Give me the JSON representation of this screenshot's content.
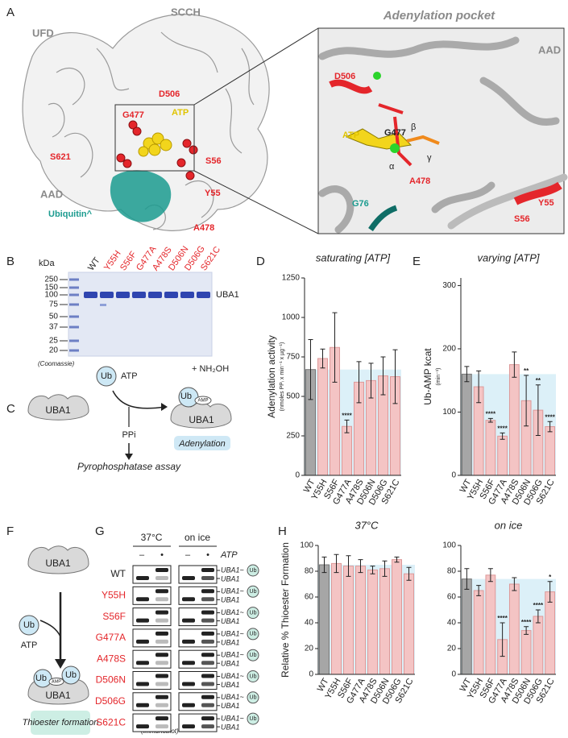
{
  "panel_labels": [
    "A",
    "B",
    "C",
    "D",
    "E",
    "F",
    "G",
    "H"
  ],
  "panel_a": {
    "labels": {
      "ufd": "UFD",
      "scch": "SCCH",
      "aad": "AAD",
      "g477": "G477",
      "d506": "D506",
      "atp": "ATP",
      "s621": "S621",
      "s56": "S56",
      "y55": "Y55",
      "a478": "A478",
      "ubiquitin": "Ubiquitin^"
    },
    "inset": {
      "title": "Adenylation pocket",
      "labels": {
        "aad": "AAD",
        "d506": "D506",
        "atp": "ATP",
        "g477": "G477",
        "beta": "β",
        "gamma": "γ",
        "alpha": "α",
        "a478": "A478",
        "y55": "Y55",
        "s56": "S56",
        "g76": "G76"
      }
    }
  },
  "panel_b": {
    "kda": "kDa",
    "markers": [
      250,
      150,
      100,
      75,
      50,
      37,
      25,
      20
    ],
    "lanes": [
      "WT",
      "Y55H",
      "S56F",
      "G477A",
      "A478S",
      "D506N",
      "D506G",
      "S621C"
    ],
    "band_label": "UBA1",
    "stain": "(Coomassie)"
  },
  "panel_c": {
    "uba1": "UBA1",
    "ub": "Ub",
    "atp": "ATP",
    "ppi": "PPi",
    "assay": "Pyrophosphatase assay",
    "reagent": "+ NH₂OH",
    "amp": "AMP",
    "step": "Adenylation"
  },
  "panel_f": {
    "uba1": "UBA1",
    "ub": "Ub",
    "atp": "ATP",
    "amp": "AMP",
    "step": "Thioester formation"
  },
  "panel_g": {
    "conditions": [
      "37°C",
      "on ice"
    ],
    "minus": "–",
    "plus": "•",
    "atp": "ATP",
    "rows": [
      "WT",
      "Y55H",
      "S56F",
      "G477A",
      "A478S",
      "D506N",
      "D506G",
      "S621C"
    ],
    "band_upper": "UBA1~",
    "band_lower": "UBA1",
    "ub": "Ub",
    "method": "(immunoblot)"
  },
  "chart_data": [
    {
      "type": "bar",
      "title": "saturating [ATP]",
      "y_label": "Adenylation activity",
      "y_sublabel": "(nmoles PPᵢ x min⁻¹ x µg⁻¹)",
      "categories": [
        "WT",
        "Y55H",
        "S56F",
        "G477A",
        "A478S",
        "D506N",
        "D506G",
        "S621C"
      ],
      "values": [
        670,
        740,
        810,
        310,
        590,
        600,
        630,
        625
      ],
      "errors": [
        190,
        60,
        220,
        40,
        130,
        110,
        120,
        170
      ],
      "significance": [
        null,
        null,
        null,
        "****",
        null,
        null,
        null,
        null
      ],
      "colors": [
        "#a6a6a6",
        "#f4c4c4",
        "#f4c4c4",
        "#f4c4c4",
        "#f4c4c4",
        "#f4c4c4",
        "#f4c4c4",
        "#f4c4c4"
      ],
      "reference_shading": "#dcf0f8",
      "ylim": [
        0,
        1250
      ],
      "yticks": [
        0,
        250,
        500,
        750,
        1000,
        1250
      ]
    },
    {
      "type": "bar",
      "title": "varying [ATP]",
      "y_label": "Ub-AMP kcat",
      "y_sublabel": "(min⁻¹)",
      "categories": [
        "WT",
        "Y55H",
        "S56F",
        "G477A",
        "A478S",
        "D506N",
        "D506G",
        "S621C"
      ],
      "values": [
        160,
        140,
        87,
        62,
        175,
        118,
        103,
        77
      ],
      "errors": [
        12,
        25,
        3,
        5,
        20,
        40,
        40,
        8
      ],
      "significance": [
        null,
        null,
        "****",
        "****",
        null,
        "**",
        "**",
        "****"
      ],
      "colors": [
        "#a6a6a6",
        "#f4c4c4",
        "#f4c4c4",
        "#f4c4c4",
        "#f4c4c4",
        "#f4c4c4",
        "#f4c4c4",
        "#f4c4c4"
      ],
      "reference_shading": "#dcf0f8",
      "ylim": [
        0,
        312
      ],
      "yticks": [
        0,
        100,
        200,
        300
      ]
    },
    {
      "type": "bar",
      "title": "37°C",
      "y_label": "Relative % Thioester Formation",
      "categories": [
        "WT",
        "Y55H",
        "S56F",
        "G477A",
        "A478S",
        "D506N",
        "D506G",
        "S621C"
      ],
      "values": [
        85,
        86,
        84,
        84,
        81,
        82,
        89,
        78
      ],
      "errors": [
        6,
        7,
        8,
        5,
        3,
        6,
        2,
        5
      ],
      "colors": [
        "#a6a6a6",
        "#f4c4c4",
        "#f4c4c4",
        "#f4c4c4",
        "#f4c4c4",
        "#f4c4c4",
        "#f4c4c4",
        "#f4c4c4"
      ],
      "reference_shading": "#dcf0f8",
      "ylim": [
        0,
        100
      ],
      "yticks": [
        0,
        20,
        40,
        60,
        80,
        100
      ]
    },
    {
      "type": "bar",
      "title": "on ice",
      "categories": [
        "WT",
        "Y55H",
        "S56F",
        "G477A",
        "A478S",
        "D506N",
        "D506G",
        "S621C"
      ],
      "values": [
        74,
        65,
        77,
        27,
        70,
        34,
        45,
        64
      ],
      "errors": [
        8,
        4,
        5,
        13,
        5,
        3,
        5,
        8
      ],
      "significance": [
        null,
        null,
        null,
        "****",
        null,
        "****",
        "****",
        "*"
      ],
      "colors": [
        "#a6a6a6",
        "#f4c4c4",
        "#f4c4c4",
        "#f4c4c4",
        "#f4c4c4",
        "#f4c4c4",
        "#f4c4c4",
        "#f4c4c4"
      ],
      "reference_shading": "#dcf0f8",
      "ylim": [
        0,
        100
      ],
      "yticks": [
        0,
        20,
        40,
        60,
        80,
        100
      ]
    }
  ]
}
